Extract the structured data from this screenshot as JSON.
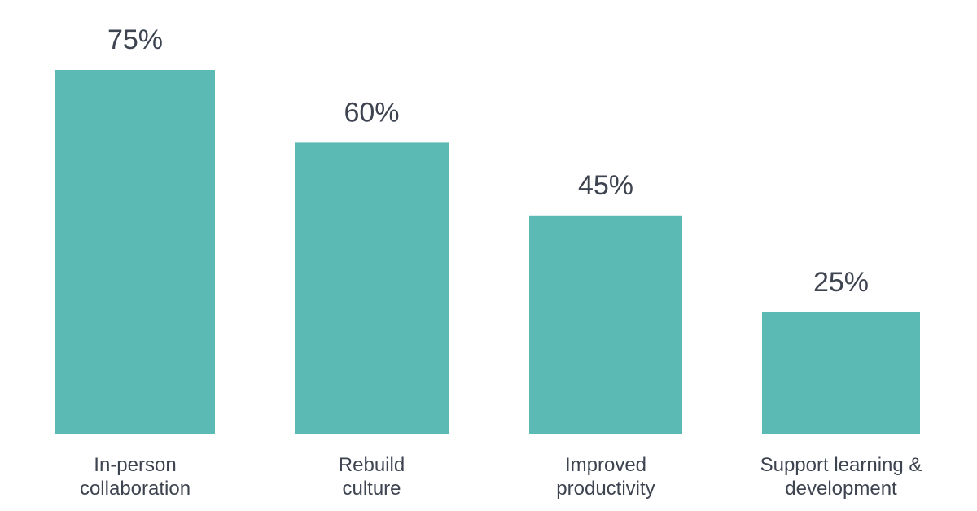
{
  "chart_data": {
    "type": "bar",
    "categories": [
      [
        "In-person",
        "collaboration"
      ],
      [
        "Rebuild",
        "culture"
      ],
      [
        "Improved",
        "productivity"
      ],
      [
        "Support learning &",
        "development"
      ]
    ],
    "values": [
      75,
      60,
      45,
      25
    ],
    "value_labels": [
      "75%",
      "60%",
      "45%",
      "25%"
    ],
    "bar_color": "#5bbab4",
    "text_color": "#3d4450",
    "title": "",
    "xlabel": "",
    "ylabel": "",
    "ylim": [
      0,
      75
    ],
    "grid": false,
    "legend": "none"
  }
}
